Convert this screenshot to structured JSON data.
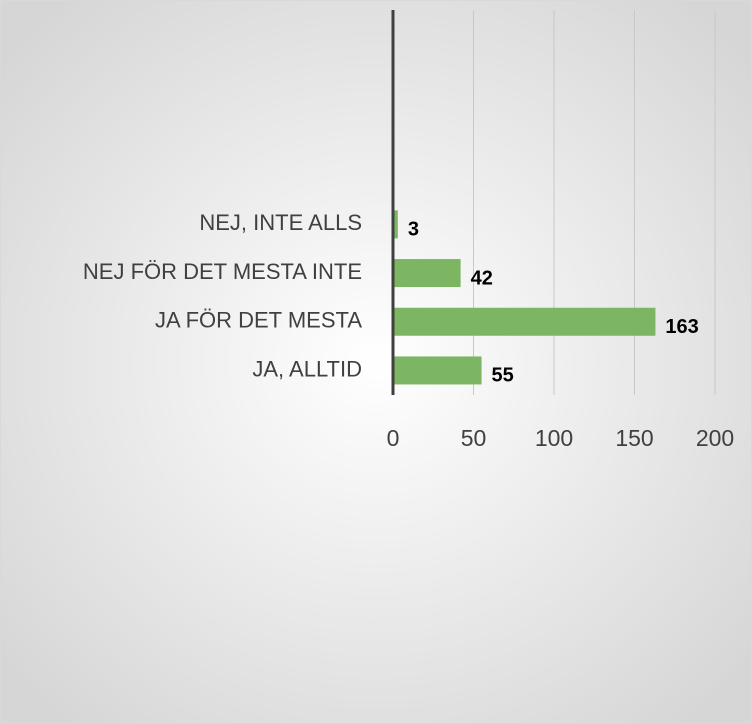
{
  "chart_data": {
    "type": "bar",
    "orientation": "horizontal",
    "categories": [
      "NEJ, INTE ALLS",
      "NEJ FÖR DET MESTA INTE",
      "JA FÖR DET MESTA",
      "JA, ALLTID"
    ],
    "values": [
      3,
      42,
      163,
      55
    ],
    "color": "#7cb663",
    "xlim": [
      0,
      200
    ],
    "xticks": [
      0,
      50,
      100,
      150,
      200
    ],
    "grid": true
  }
}
